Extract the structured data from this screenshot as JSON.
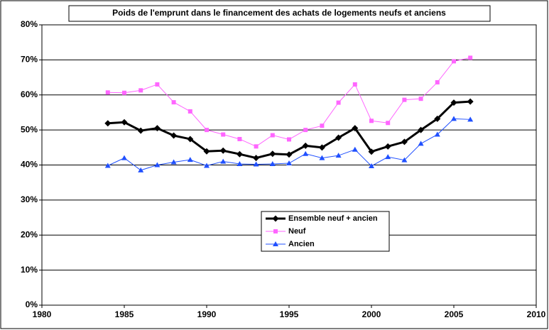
{
  "chart_data": {
    "type": "line",
    "title": "Poids de l'emprunt dans le financement des achats de logements neufs et anciens",
    "x": [
      1984,
      1985,
      1986,
      1987,
      1988,
      1989,
      1990,
      1991,
      1992,
      1993,
      1994,
      1995,
      1996,
      1997,
      1998,
      1999,
      2000,
      2001,
      2002,
      2003,
      2004,
      2005,
      2006
    ],
    "series": [
      {
        "name": "Ensemble neuf + ancien",
        "color": "#000000",
        "marker": "diamond",
        "values": [
          51.9,
          52.2,
          49.8,
          50.5,
          48.4,
          47.4,
          43.9,
          44.1,
          43.1,
          42.0,
          43.2,
          43.0,
          45.5,
          45.0,
          47.8,
          50.5,
          43.8,
          45.3,
          46.6,
          50.0,
          53.2,
          57.8,
          58.1
        ]
      },
      {
        "name": "Neuf",
        "color": "#ff66ff",
        "marker": "square",
        "values": [
          60.7,
          60.6,
          61.3,
          63.0,
          57.9,
          55.3,
          50.0,
          48.7,
          47.4,
          45.3,
          48.5,
          47.3,
          50.0,
          51.2,
          57.8,
          63.0,
          52.6,
          52.0,
          58.6,
          58.9,
          63.6,
          69.6,
          70.6
        ]
      },
      {
        "name": "Ancien",
        "color": "#2050ff",
        "marker": "triangle",
        "values": [
          39.8,
          42.0,
          38.5,
          40.0,
          40.8,
          41.5,
          39.8,
          41.0,
          40.3,
          40.2,
          40.3,
          40.5,
          43.2,
          42.0,
          42.7,
          44.4,
          39.7,
          42.3,
          41.4,
          46.1,
          48.7,
          53.2,
          53.0
        ]
      }
    ],
    "xlim": [
      1980,
      2010
    ],
    "xticks": [
      1980,
      1985,
      1990,
      1995,
      2000,
      2005,
      2010
    ],
    "ylim": [
      0,
      80
    ],
    "yticks": [
      {
        "value": 0,
        "label": "0%"
      },
      {
        "value": 10,
        "label": "10%"
      },
      {
        "value": 20,
        "label": "20%"
      },
      {
        "value": 30,
        "label": "30%"
      },
      {
        "value": 40,
        "label": "40%"
      },
      {
        "value": 50,
        "label": "50%"
      },
      {
        "value": 60,
        "label": "60%"
      },
      {
        "value": 70,
        "label": "70%"
      },
      {
        "value": 80,
        "label": "80%"
      }
    ],
    "grid": true
  }
}
